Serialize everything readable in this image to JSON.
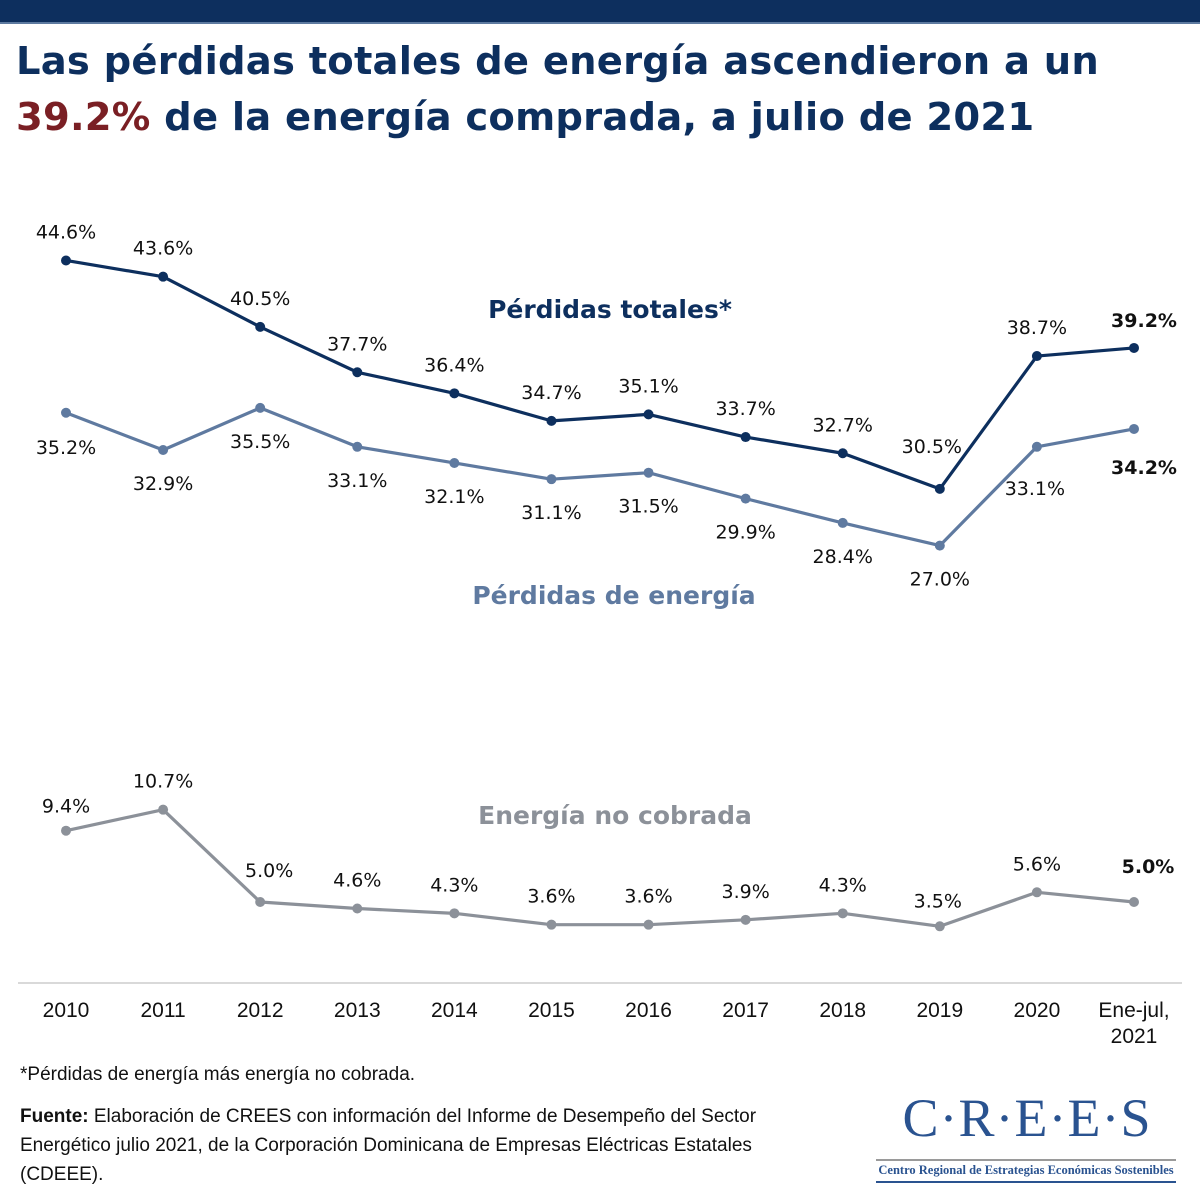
{
  "header": {
    "title_part1": "Las pérdidas totales de energía ascendieron a un",
    "title_highlight": "39.2%",
    "title_part2": " de la energía comprada, a julio de 2021",
    "colors": {
      "bar": "#0d2f5e",
      "title": "#0d2f5e",
      "highlight": "#7a1f24"
    }
  },
  "chart_data": {
    "type": "line",
    "title": "Las pérdidas totales de energía ascendieron a un 39.2% de la energía comprada, a julio de 2021",
    "xlabel": "",
    "ylabel": "",
    "grid": false,
    "legend": "inline",
    "categories": [
      "2010",
      "2011",
      "2012",
      "2013",
      "2014",
      "2015",
      "2016",
      "2017",
      "2018",
      "2019",
      "2020",
      "Ene-jul, 2021"
    ],
    "category_lines": [
      [
        "2010"
      ],
      [
        "2011"
      ],
      [
        "2012"
      ],
      [
        "2013"
      ],
      [
        "2014"
      ],
      [
        "2015"
      ],
      [
        "2016"
      ],
      [
        "2017"
      ],
      [
        "2018"
      ],
      [
        "2019"
      ],
      [
        "2020"
      ],
      [
        "Ene-jul,",
        "2021"
      ]
    ],
    "ylim": [
      0,
      45
    ],
    "series": [
      {
        "name": "Pérdidas totales*",
        "color": "#0d2f5e",
        "values": [
          44.6,
          43.6,
          40.5,
          37.7,
          36.4,
          34.7,
          35.1,
          33.7,
          32.7,
          30.5,
          38.7,
          39.2
        ],
        "labels": [
          "44.6%",
          "43.6%",
          "40.5%",
          "37.7%",
          "36.4%",
          "34.7%",
          "35.1%",
          "33.7%",
          "32.7%",
          "30.5%",
          "38.7%",
          "39.2%"
        ],
        "label_position": "above"
      },
      {
        "name": "Pérdidas de energía",
        "color": "#5f7aa0",
        "values": [
          35.2,
          32.9,
          35.5,
          33.1,
          32.1,
          31.1,
          31.5,
          29.9,
          28.4,
          27.0,
          33.1,
          34.2
        ],
        "labels": [
          "35.2%",
          "32.9%",
          "35.5%",
          "33.1%",
          "32.1%",
          "31.1%",
          "31.5%",
          "29.9%",
          "28.4%",
          "27.0%",
          "33.1%",
          "34.2%"
        ],
        "label_position": "below"
      },
      {
        "name": "Energía no cobrada",
        "color": "#8c9199",
        "values": [
          9.4,
          10.7,
          5.0,
          4.6,
          4.3,
          3.6,
          3.6,
          3.9,
          4.3,
          3.5,
          5.6,
          5.0
        ],
        "labels": [
          "9.4%",
          "10.7%",
          "5.0%",
          "4.6%",
          "4.3%",
          "3.6%",
          "3.6%",
          "3.9%",
          "4.3%",
          "3.5%",
          "5.6%",
          "5.0%"
        ],
        "label_position": "above"
      }
    ],
    "annotations": [
      "Last point labels (Ene-jul, 2021) shown in bold"
    ]
  },
  "footer": {
    "footnote": "*Pérdidas de energía más energía no cobrada.",
    "source_label": "Fuente:",
    "source_text": " Elaboración de CREES con información del Informe de Desempeño del Sector Energético julio 2021, de la Corporación Dominicana de Empresas Eléctricas Estatales (CDEEE).",
    "logo_word": "C·R·E·E·S",
    "logo_subtitle": "Centro Regional de Estrategias Económicas Sostenibles"
  }
}
